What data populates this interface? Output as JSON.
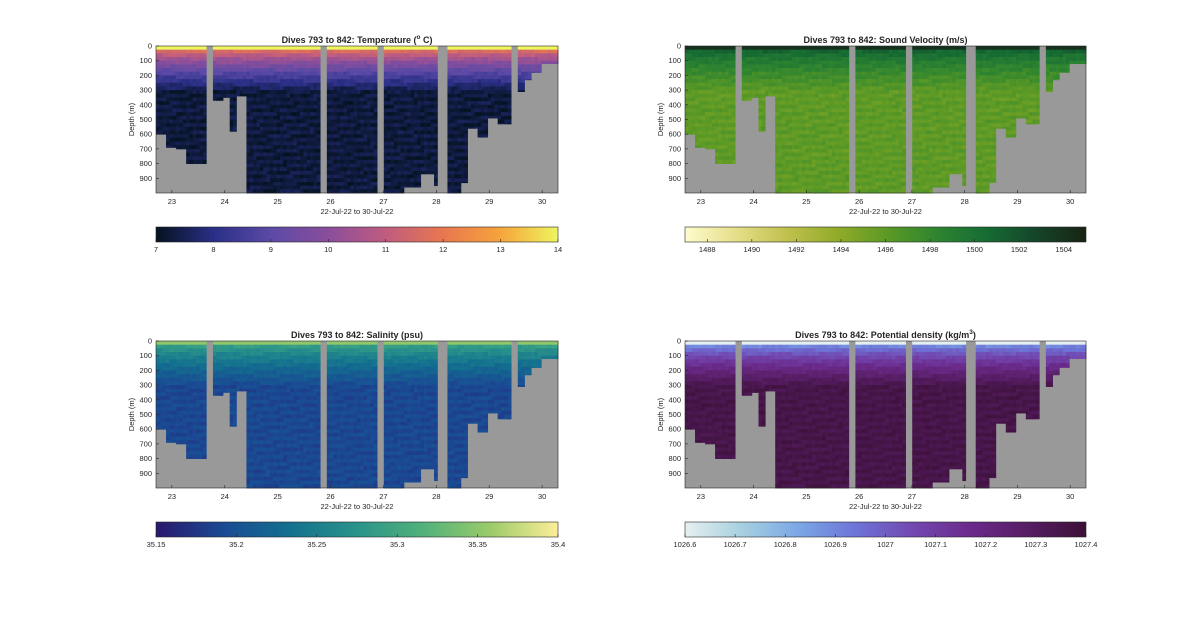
{
  "figure": {
    "xlabel": "22-Jul-22 to 30-Jul-22",
    "ylabel": "Depth (m)"
  },
  "chart_data": [
    {
      "type": "heatmap",
      "title": "Dives 793 to 842: Temperature (° C)",
      "title_parts": {
        "before": "Dives 793 to 842: Temperature (",
        "sup": "o",
        "after": " C)"
      },
      "xlabel": "22-Jul-22 to 30-Jul-22",
      "ylabel": "Depth (m)",
      "x_ticks": [
        "23",
        "24",
        "25",
        "26",
        "27",
        "28",
        "29",
        "30"
      ],
      "y_ticks": [
        "0",
        "100",
        "200",
        "300",
        "400",
        "500",
        "600",
        "700",
        "800",
        "900"
      ],
      "xlim": [
        22.7,
        30.3
      ],
      "ylim": [
        0,
        1000
      ],
      "y_reversed": true,
      "colorbar": {
        "min": 7,
        "max": 14,
        "ticks": [
          "7",
          "8",
          "9",
          "10",
          "11",
          "12",
          "13",
          "14"
        ],
        "colormap": "thermal",
        "colors": [
          "#04121f",
          "#2a2f86",
          "#5b4aa6",
          "#8a4e9c",
          "#c05c7f",
          "#e8774f",
          "#f6a43c",
          "#eef55f"
        ]
      },
      "surface_value": 13.5,
      "bottom_value": 7.3
    },
    {
      "type": "heatmap",
      "title": "Dives 793 to 842: Sound Velocity (m/s)",
      "title_parts": {
        "before": "Dives 793 to 842: Sound Velocity (m/s)",
        "sup": "",
        "after": ""
      },
      "xlabel": "22-Jul-22 to 30-Jul-22",
      "ylabel": "Depth (m)",
      "x_ticks": [
        "23",
        "24",
        "25",
        "26",
        "27",
        "28",
        "29",
        "30"
      ],
      "y_ticks": [
        "0",
        "100",
        "200",
        "300",
        "400",
        "500",
        "600",
        "700",
        "800",
        "900"
      ],
      "xlim": [
        22.7,
        30.3
      ],
      "ylim": [
        0,
        1000
      ],
      "y_reversed": true,
      "colorbar": {
        "min": 1487,
        "max": 1505,
        "ticks": [
          "1488",
          "1490",
          "1492",
          "1494",
          "1496",
          "1498",
          "1500",
          "1502",
          "1504"
        ],
        "colormap": "speed",
        "colors": [
          "#fefccd",
          "#e6df8a",
          "#c2c14f",
          "#93ac2a",
          "#5d9a25",
          "#2f8530",
          "#166c33",
          "#15452a",
          "#172313"
        ]
      },
      "surface_value": 1503,
      "bottom_value": 1496
    },
    {
      "type": "heatmap",
      "title": "Dives 793 to 842: Salinity (psu)",
      "title_parts": {
        "before": "Dives 793 to 842: Salinity (psu)",
        "sup": "",
        "after": ""
      },
      "xlabel": "22-Jul-22 to 30-Jul-22",
      "ylabel": "Depth (m)",
      "x_ticks": [
        "23",
        "24",
        "25",
        "26",
        "27",
        "28",
        "29",
        "30"
      ],
      "y_ticks": [
        "0",
        "100",
        "200",
        "300",
        "400",
        "500",
        "600",
        "700",
        "800",
        "900"
      ],
      "xlim": [
        22.7,
        30.3
      ],
      "ylim": [
        0,
        1000
      ],
      "y_reversed": true,
      "colorbar": {
        "min": 35.15,
        "max": 35.4,
        "ticks": [
          "35.15",
          "35.2",
          "35.25",
          "35.3",
          "35.35",
          "35.4"
        ],
        "colormap": "haline",
        "colors": [
          "#2a186c",
          "#1a4a94",
          "#13708f",
          "#2a938a",
          "#51b27a",
          "#9dcb6a",
          "#fdee99"
        ]
      },
      "surface_value": 35.33,
      "bottom_value": 35.19
    },
    {
      "type": "heatmap",
      "title": "Dives 793 to 842: Potential density (kg/m³)",
      "title_parts": {
        "before": "Dives 793 to 842: Potential density (kg/m",
        "sup": "3",
        "after": ")"
      },
      "xlabel": "22-Jul-22 to 30-Jul-22",
      "ylabel": "Depth (m)",
      "x_ticks": [
        "23",
        "24",
        "25",
        "26",
        "27",
        "28",
        "29",
        "30"
      ],
      "y_ticks": [
        "0",
        "100",
        "200",
        "300",
        "400",
        "500",
        "600",
        "700",
        "800",
        "900"
      ],
      "xlim": [
        22.7,
        30.3
      ],
      "ylim": [
        0,
        1000
      ],
      "y_reversed": true,
      "colorbar": {
        "min": 1026.6,
        "max": 1027.4,
        "ticks": [
          "1026.6",
          "1026.7",
          "1026.8",
          "1026.9",
          "1027",
          "1027.1",
          "1027.2",
          "1027.3",
          "1027.4"
        ],
        "colormap": "dense",
        "colors": [
          "#e6f0f0",
          "#a6cfe0",
          "#7aa6e6",
          "#6d73d6",
          "#7247b0",
          "#6a2a8a",
          "#561d63",
          "#3b1036"
        ]
      },
      "surface_value": 1026.7,
      "bottom_value": 1027.35
    }
  ],
  "missing_fill_color": "#999999",
  "max_depth_profile": [
    {
      "day": 22.7,
      "depth": 600
    },
    {
      "day": 22.9,
      "depth": 690
    },
    {
      "day": 23.1,
      "depth": 700
    },
    {
      "day": 23.3,
      "depth": 800
    },
    {
      "day": 23.6,
      "depth": 800
    },
    {
      "day": 23.65,
      "depth": 0
    },
    {
      "day": 23.8,
      "depth": 370
    },
    {
      "day": 23.95,
      "depth": 350
    },
    {
      "day": 24.1,
      "depth": 580
    },
    {
      "day": 24.22,
      "depth": 340
    },
    {
      "day": 24.4,
      "depth": 1000
    },
    {
      "day": 25.75,
      "depth": 1000
    },
    {
      "day": 25.8,
      "depth": 0
    },
    {
      "day": 25.95,
      "depth": 1000
    },
    {
      "day": 26.85,
      "depth": 1000
    },
    {
      "day": 26.9,
      "depth": 0
    },
    {
      "day": 27.0,
      "depth": 1000
    },
    {
      "day": 27.4,
      "depth": 960
    },
    {
      "day": 27.7,
      "depth": 870
    },
    {
      "day": 27.95,
      "depth": 950
    },
    {
      "day": 28.05,
      "depth": 0
    },
    {
      "day": 28.2,
      "depth": 1000
    },
    {
      "day": 28.45,
      "depth": 930
    },
    {
      "day": 28.6,
      "depth": 560
    },
    {
      "day": 28.8,
      "depth": 620
    },
    {
      "day": 29.0,
      "depth": 490
    },
    {
      "day": 29.15,
      "depth": 530
    },
    {
      "day": 29.4,
      "depth": 0
    },
    {
      "day": 29.55,
      "depth": 310
    },
    {
      "day": 29.65,
      "depth": 230
    },
    {
      "day": 29.8,
      "depth": 180
    },
    {
      "day": 30.0,
      "depth": 120
    },
    {
      "day": 30.3,
      "depth": 100
    }
  ]
}
